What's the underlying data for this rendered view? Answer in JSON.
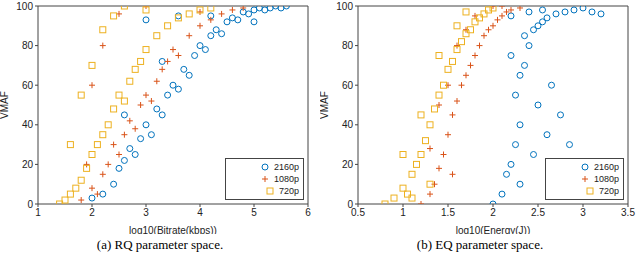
{
  "chart_data": [
    {
      "type": "scatter",
      "title": "(a) RQ parameter space.",
      "x_label": "log10(Bitrate(kbps))",
      "y_label": "VMAF",
      "xlim": [
        1,
        6
      ],
      "xticks": [
        1,
        2,
        3,
        4,
        5,
        6
      ],
      "ylim": [
        0,
        100
      ],
      "yticks": [
        0,
        20,
        40,
        60,
        80,
        100
      ],
      "grid": false,
      "legend": "lower right",
      "series": [
        {
          "name": "2160p",
          "color": "#0072BD",
          "marker": "circle",
          "values": [
            [
              2.0,
              3
            ],
            [
              2.2,
              5
            ],
            [
              2.4,
              10
            ],
            [
              2.5,
              18
            ],
            [
              2.6,
              22
            ],
            [
              2.7,
              28
            ],
            [
              2.8,
              25
            ],
            [
              2.9,
              33
            ],
            [
              3.0,
              40
            ],
            [
              3.1,
              35
            ],
            [
              3.2,
              48
            ],
            [
              3.3,
              45
            ],
            [
              3.4,
              55
            ],
            [
              3.5,
              60
            ],
            [
              3.6,
              58
            ],
            [
              3.7,
              68
            ],
            [
              3.8,
              65
            ],
            [
              3.9,
              75
            ],
            [
              4.0,
              80
            ],
            [
              4.1,
              78
            ],
            [
              4.2,
              85
            ],
            [
              4.3,
              88
            ],
            [
              4.4,
              86
            ],
            [
              4.5,
              92
            ],
            [
              4.6,
              94
            ],
            [
              4.7,
              93
            ],
            [
              4.8,
              97
            ],
            [
              4.9,
              96
            ],
            [
              5.0,
              98
            ],
            [
              5.1,
              99
            ],
            [
              5.2,
              98
            ],
            [
              5.3,
              99
            ],
            [
              5.4,
              100
            ],
            [
              5.5,
              99
            ],
            [
              5.6,
              100
            ],
            [
              3.0,
              93
            ],
            [
              3.6,
              95
            ],
            [
              2.6,
              45
            ],
            [
              3.3,
              72
            ],
            [
              4.2,
              95
            ],
            [
              5.0,
              92
            ]
          ]
        },
        {
          "name": "1080p",
          "color": "#D95319",
          "marker": "plus",
          "values": [
            [
              1.8,
              2
            ],
            [
              2.0,
              8
            ],
            [
              2.1,
              5
            ],
            [
              2.2,
              15
            ],
            [
              2.3,
              20
            ],
            [
              2.4,
              30
            ],
            [
              2.5,
              25
            ],
            [
              2.6,
              35
            ],
            [
              2.7,
              42
            ],
            [
              2.8,
              38
            ],
            [
              2.9,
              50
            ],
            [
              3.0,
              55
            ],
            [
              3.1,
              52
            ],
            [
              3.2,
              62
            ],
            [
              3.3,
              68
            ],
            [
              3.4,
              72
            ],
            [
              3.5,
              78
            ],
            [
              3.6,
              75
            ],
            [
              3.8,
              85
            ],
            [
              4.0,
              90
            ],
            [
              4.2,
              93
            ],
            [
              4.4,
              96
            ],
            [
              4.6,
              98
            ],
            [
              4.8,
              99
            ],
            [
              2.0,
              60
            ],
            [
              2.2,
              80
            ],
            [
              3.0,
              100
            ],
            [
              2.5,
              96
            ],
            [
              4.0,
              97
            ],
            [
              1.9,
              20
            ]
          ]
        },
        {
          "name": "720p",
          "color": "#EDB120",
          "marker": "square",
          "values": [
            [
              1.4,
              0
            ],
            [
              1.5,
              2
            ],
            [
              1.6,
              5
            ],
            [
              1.7,
              8
            ],
            [
              1.8,
              12
            ],
            [
              1.9,
              18
            ],
            [
              2.0,
              25
            ],
            [
              2.1,
              30
            ],
            [
              2.2,
              35
            ],
            [
              2.3,
              40
            ],
            [
              2.4,
              48
            ],
            [
              2.5,
              55
            ],
            [
              2.6,
              52
            ],
            [
              2.7,
              62
            ],
            [
              2.8,
              68
            ],
            [
              2.9,
              72
            ],
            [
              3.0,
              78
            ],
            [
              3.2,
              85
            ],
            [
              3.4,
              90
            ],
            [
              3.6,
              94
            ],
            [
              3.8,
              96
            ],
            [
              4.0,
              98
            ],
            [
              4.2,
              99
            ],
            [
              1.8,
              55
            ],
            [
              2.0,
              70
            ],
            [
              2.2,
              88
            ],
            [
              2.4,
              95
            ],
            [
              2.6,
              100
            ],
            [
              1.6,
              30
            ],
            [
              3.0,
              98
            ]
          ]
        }
      ]
    },
    {
      "type": "scatter",
      "title": "(b) EQ parameter space.",
      "x_label": "log10(Energy(J))",
      "y_label": "VMAF",
      "xlim": [
        0.5,
        3.5
      ],
      "xticks": [
        0.5,
        1,
        1.5,
        2,
        2.5,
        3,
        3.5
      ],
      "ylim": [
        0,
        100
      ],
      "yticks": [
        0,
        20,
        40,
        60,
        80,
        100
      ],
      "grid": false,
      "legend": "lower right",
      "series": [
        {
          "name": "2160p",
          "color": "#0072BD",
          "marker": "circle",
          "values": [
            [
              2.0,
              0
            ],
            [
              2.1,
              5
            ],
            [
              2.15,
              15
            ],
            [
              2.2,
              20
            ],
            [
              2.25,
              30
            ],
            [
              2.3,
              40
            ],
            [
              2.25,
              55
            ],
            [
              2.3,
              65
            ],
            [
              2.35,
              70
            ],
            [
              2.2,
              75
            ],
            [
              2.4,
              80
            ],
            [
              2.35,
              85
            ],
            [
              2.45,
              88
            ],
            [
              2.5,
              90
            ],
            [
              2.55,
              92
            ],
            [
              2.6,
              94
            ],
            [
              2.7,
              96
            ],
            [
              2.8,
              97
            ],
            [
              2.9,
              98
            ],
            [
              3.0,
              99
            ],
            [
              3.1,
              97
            ],
            [
              3.2,
              96
            ],
            [
              2.5,
              50
            ],
            [
              2.6,
              35
            ],
            [
              2.7,
              20
            ],
            [
              2.8,
              10
            ],
            [
              2.45,
              25
            ],
            [
              2.65,
              60
            ],
            [
              2.75,
              45
            ],
            [
              2.4,
              97
            ],
            [
              2.2,
              95
            ],
            [
              2.3,
              10
            ],
            [
              2.55,
              98
            ],
            [
              2.85,
              30
            ]
          ]
        },
        {
          "name": "1080p",
          "color": "#D95319",
          "marker": "plus",
          "values": [
            [
              1.2,
              0
            ],
            [
              1.3,
              5
            ],
            [
              1.35,
              10
            ],
            [
              1.4,
              18
            ],
            [
              1.45,
              25
            ],
            [
              1.5,
              35
            ],
            [
              1.55,
              45
            ],
            [
              1.6,
              52
            ],
            [
              1.65,
              60
            ],
            [
              1.7,
              65
            ],
            [
              1.75,
              70
            ],
            [
              1.8,
              75
            ],
            [
              1.85,
              80
            ],
            [
              1.9,
              85
            ],
            [
              1.95,
              88
            ],
            [
              2.0,
              90
            ],
            [
              2.05,
              93
            ],
            [
              2.1,
              95
            ],
            [
              2.15,
              97
            ],
            [
              2.2,
              98
            ],
            [
              2.3,
              99
            ],
            [
              1.4,
              50
            ],
            [
              1.5,
              60
            ],
            [
              1.6,
              80
            ],
            [
              1.7,
              88
            ],
            [
              1.8,
              95
            ],
            [
              2.0,
              100
            ],
            [
              1.3,
              28
            ],
            [
              1.55,
              15
            ],
            [
              2.1,
              100
            ]
          ]
        },
        {
          "name": "720p",
          "color": "#EDB120",
          "marker": "square",
          "values": [
            [
              0.8,
              0
            ],
            [
              0.9,
              3
            ],
            [
              1.0,
              8
            ],
            [
              1.05,
              5
            ],
            [
              1.1,
              15
            ],
            [
              1.15,
              20
            ],
            [
              1.2,
              25
            ],
            [
              1.25,
              32
            ],
            [
              1.3,
              40
            ],
            [
              1.35,
              48
            ],
            [
              1.4,
              55
            ],
            [
              1.45,
              60
            ],
            [
              1.5,
              68
            ],
            [
              1.55,
              72
            ],
            [
              1.6,
              78
            ],
            [
              1.65,
              82
            ],
            [
              1.7,
              86
            ],
            [
              1.75,
              88
            ],
            [
              1.8,
              92
            ],
            [
              1.85,
              94
            ],
            [
              1.9,
              96
            ],
            [
              1.95,
              98
            ],
            [
              2.0,
              99
            ],
            [
              1.0,
              25
            ],
            [
              1.2,
              45
            ],
            [
              1.4,
              75
            ],
            [
              1.6,
              90
            ],
            [
              1.1,
              3
            ],
            [
              1.3,
              10
            ],
            [
              1.7,
              97
            ]
          ]
        }
      ]
    }
  ]
}
